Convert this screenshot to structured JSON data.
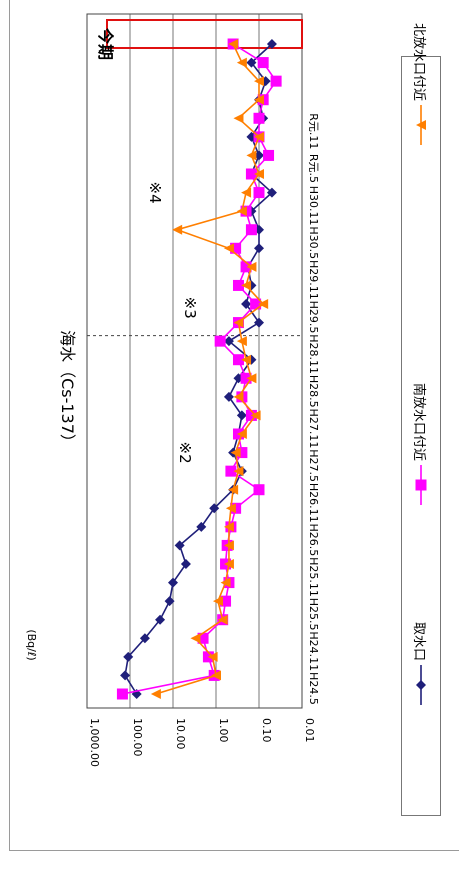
{
  "chart_data": {
    "type": "line",
    "title": "海水（Cs-137）",
    "ylabel": "(Bq/ℓ)",
    "yscale": "log",
    "ylim": [
      0.01,
      1000
    ],
    "yticks": [
      "0.01",
      "0.10",
      "1.00",
      "10.00",
      "100.00",
      "1,000.00"
    ],
    "xticks": [
      "H24.5",
      "H24.11",
      "H25.5",
      "H25.11",
      "H26.5",
      "H26.11",
      "H27.5",
      "H27.11",
      "H28.5",
      "H28.11",
      "H29.5",
      "H29.11",
      "H30.5",
      "H30.11",
      "R元.5",
      "R元.11"
    ],
    "annotations": [
      {
        "text": "※2",
        "near": "H27.5"
      },
      {
        "text": "※3",
        "near": "H28.11"
      },
      {
        "text": "※4",
        "near": "H29.11"
      },
      {
        "text": "今期",
        "near": "R元.11"
      }
    ],
    "vline_label_at": "H28.8",
    "highlight_period": "R元.11",
    "series": [
      {
        "name": "取水口",
        "color": "#1f1f7a",
        "marker": "diamond",
        "points": [
          {
            "x": 0,
            "y": 70
          },
          {
            "x": 1,
            "y": 130
          },
          {
            "x": 2,
            "y": 110
          },
          {
            "x": 3,
            "y": 45
          },
          {
            "x": 4,
            "y": 20
          },
          {
            "x": 5,
            "y": 12
          },
          {
            "x": 6,
            "y": 10
          },
          {
            "x": 7,
            "y": 5
          },
          {
            "x": 8,
            "y": 7
          },
          {
            "x": 9,
            "y": 2.2
          },
          {
            "x": 10,
            "y": 1.1
          },
          {
            "x": 11,
            "y": 0.4
          },
          {
            "x": 12,
            "y": 0.25
          },
          {
            "x": 13,
            "y": 0.4
          },
          {
            "x": 14,
            "y": 0.3
          },
          {
            "x": 15,
            "y": 0.25
          },
          {
            "x": 16,
            "y": 0.5
          },
          {
            "x": 17,
            "y": 0.3
          },
          {
            "x": 18,
            "y": 0.15
          },
          {
            "x": 19,
            "y": 0.5
          },
          {
            "x": 20,
            "y": 0.1
          },
          {
            "x": 21,
            "y": 0.2
          },
          {
            "x": 22,
            "y": 0.15
          },
          {
            "x": 23,
            "y": 0.18
          },
          {
            "x": 24,
            "y": 0.1
          },
          {
            "x": 25,
            "y": 0.1
          },
          {
            "x": 26,
            "y": 0.15
          },
          {
            "x": 27,
            "y": 0.05
          },
          {
            "x": 28,
            "y": 0.15
          },
          {
            "x": 29,
            "y": 0.1
          },
          {
            "x": 30,
            "y": 0.15
          },
          {
            "x": 31,
            "y": 0.08
          },
          {
            "x": 32,
            "y": 0.1
          },
          {
            "x": 33,
            "y": 0.07
          },
          {
            "x": 34,
            "y": 0.15
          },
          {
            "x": 35,
            "y": 0.05
          }
        ]
      },
      {
        "name": "南放水口付近",
        "color": "#ff00ff",
        "marker": "square",
        "points": [
          {
            "x": 0,
            "y": 150
          },
          {
            "x": 1,
            "y": 1.1
          },
          {
            "x": 2,
            "y": 1.5
          },
          {
            "x": 3,
            "y": 2
          },
          {
            "x": 4,
            "y": 0.7
          },
          {
            "x": 5,
            "y": 0.6
          },
          {
            "x": 6,
            "y": 0.5
          },
          {
            "x": 7,
            "y": 0.6
          },
          {
            "x": 8,
            "y": 0.55
          },
          {
            "x": 9,
            "y": 0.45
          },
          {
            "x": 10,
            "y": 0.35
          },
          {
            "x": 11,
            "y": 0.1
          },
          {
            "x": 12,
            "y": 0.45
          },
          {
            "x": 13,
            "y": 0.25
          },
          {
            "x": 14,
            "y": 0.3
          },
          {
            "x": 15,
            "y": 0.15
          },
          {
            "x": 16,
            "y": 0.25
          },
          {
            "x": 17,
            "y": 0.2
          },
          {
            "x": 18,
            "y": 0.3
          },
          {
            "x": 19,
            "y": 0.8
          },
          {
            "x": 20,
            "y": 0.3
          },
          {
            "x": 21,
            "y": 0.12
          },
          {
            "x": 22,
            "y": 0.3
          },
          {
            "x": 23,
            "y": 0.2
          },
          {
            "x": 24,
            "y": 0.35
          },
          {
            "x": 25,
            "y": 0.15
          },
          {
            "x": 26,
            "y": 0.2
          },
          {
            "x": 27,
            "y": 0.1
          },
          {
            "x": 28,
            "y": 0.15
          },
          {
            "x": 29,
            "y": 0.06
          },
          {
            "x": 30,
            "y": 0.1
          },
          {
            "x": 31,
            "y": 0.1
          },
          {
            "x": 32,
            "y": 0.08
          },
          {
            "x": 33,
            "y": 0.04
          },
          {
            "x": 34,
            "y": 0.08
          },
          {
            "x": 35,
            "y": 0.4
          }
        ]
      },
      {
        "name": "北放水口付近",
        "color": "#ff7f00",
        "marker": "triangle",
        "points": [
          {
            "x": 0,
            "y": 25
          },
          {
            "x": 1,
            "y": 1
          },
          {
            "x": 2,
            "y": 1.2
          },
          {
            "x": 3,
            "y": 3
          },
          {
            "x": 4,
            "y": 0.7
          },
          {
            "x": 5,
            "y": 0.9
          },
          {
            "x": 6,
            "y": 0.6
          },
          {
            "x": 7,
            "y": 0.5
          },
          {
            "x": 8,
            "y": 0.5
          },
          {
            "x": 9,
            "y": 0.5
          },
          {
            "x": 10,
            "y": 0.45
          },
          {
            "x": 11,
            "y": 0.4
          },
          {
            "x": 12,
            "y": 0.3
          },
          {
            "x": 13,
            "y": 0.35
          },
          {
            "x": 14,
            "y": 0.25
          },
          {
            "x": 15,
            "y": 0.12
          },
          {
            "x": 16,
            "y": 0.3
          },
          {
            "x": 17,
            "y": 0.15
          },
          {
            "x": 18,
            "y": 0.2
          },
          {
            "x": 19,
            "y": 0.25
          },
          {
            "x": 20,
            "y": 0.3
          },
          {
            "x": 21,
            "y": 0.08
          },
          {
            "x": 22,
            "y": 0.2
          },
          {
            "x": 23,
            "y": 0.15
          },
          {
            "x": 24,
            "y": 0.5
          },
          {
            "x": 25,
            "y": 8
          },
          {
            "x": 26,
            "y": 0.25
          },
          {
            "x": 27,
            "y": 0.2
          },
          {
            "x": 28,
            "y": 0.1
          },
          {
            "x": 29,
            "y": 0.15
          },
          {
            "x": 30,
            "y": 0.1
          },
          {
            "x": 31,
            "y": 0.3
          },
          {
            "x": 32,
            "y": 0.1
          },
          {
            "x": 33,
            "y": 0.1
          },
          {
            "x": 34,
            "y": 0.25
          },
          {
            "x": 35,
            "y": 0.4
          }
        ]
      }
    ]
  }
}
